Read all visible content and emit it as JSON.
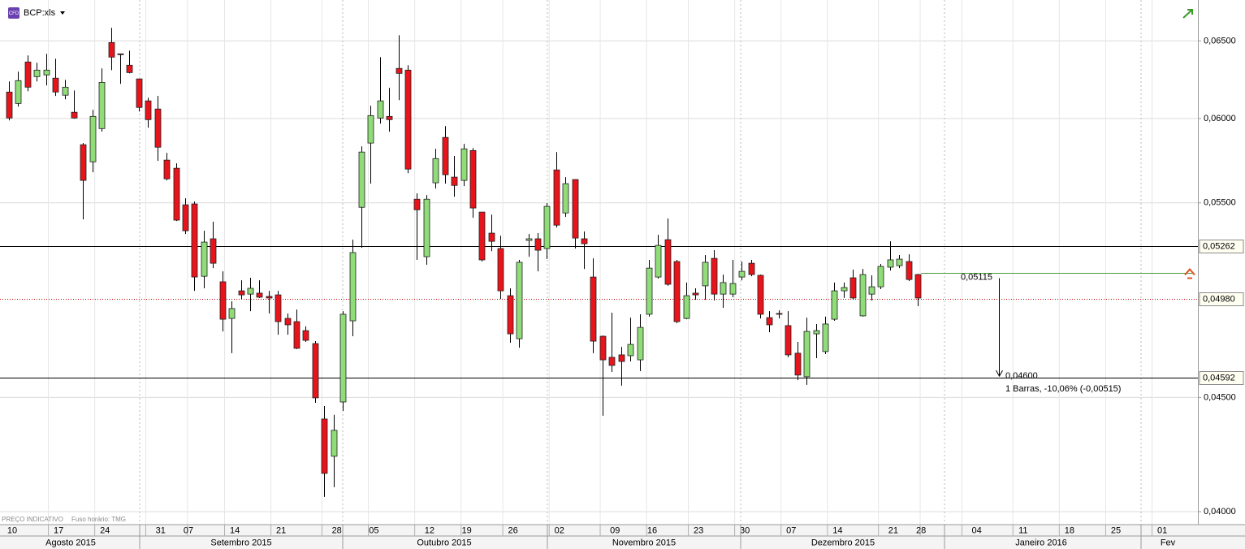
{
  "chart_data": {
    "type": "candlestick",
    "instrument": "BCP:xls",
    "badge": "CFD",
    "footnote": [
      "PREÇO INDICATIVO",
      "Fuso horário: TMG"
    ],
    "log_scale": true,
    "grid": true,
    "colors": {
      "up": "#8fdc78",
      "down": "#e8141c",
      "wick": "#000000"
    },
    "ylim": [
      0.0395,
      0.0678
    ],
    "yticks": [
      {
        "value": 0.04,
        "label": "0,04000"
      },
      {
        "value": 0.045,
        "label": "0,04500"
      },
      {
        "value": 0.055,
        "label": "0,05500"
      },
      {
        "value": 0.06,
        "label": "0,06000"
      },
      {
        "value": 0.065,
        "label": "0,06500"
      }
    ],
    "months": [
      "Agosto 2015",
      "Setembro 2015",
      "Outubro 2015",
      "Novembro 2015",
      "Dezembro 2015",
      "Janeiro 2016",
      "Fev"
    ],
    "categories": [
      "10",
      null,
      null,
      null,
      null,
      "17",
      null,
      null,
      null,
      null,
      "24",
      null,
      null,
      null,
      null,
      null,
      "31",
      null,
      null,
      "07",
      null,
      null,
      null,
      null,
      "14",
      null,
      null,
      null,
      null,
      "21",
      null,
      null,
      null,
      null,
      null,
      "28",
      null,
      null,
      null,
      "05",
      null,
      null,
      null,
      null,
      null,
      "12",
      null,
      null,
      null,
      "19",
      null,
      null,
      null,
      null,
      "26",
      null,
      null,
      null,
      null,
      "02",
      null,
      null,
      null,
      null,
      null,
      "09",
      null,
      null,
      null,
      "16",
      null,
      null,
      null,
      null,
      "23",
      null,
      null,
      null,
      null,
      "30",
      null,
      null,
      null,
      null,
      "07",
      null,
      null,
      null,
      null,
      "14",
      null,
      null,
      null,
      null,
      null,
      "21",
      null,
      null,
      "28",
      null,
      null,
      null,
      null,
      null,
      "04",
      null,
      null,
      null,
      null,
      "11",
      null,
      null,
      null,
      null,
      "18",
      null,
      null,
      null,
      null,
      "25",
      null,
      null,
      null,
      null,
      "01",
      null
    ],
    "open": [
      0.06166,
      0.06094,
      0.0636,
      0.06265,
      0.06276,
      0.06255,
      0.06146,
      0.06039,
      0.0584,
      0.05738,
      0.05938,
      0.06489,
      0.06414,
      0.06339,
      0.0625,
      0.0611,
      0.06059,
      0.05748,
      0.057,
      0.05489,
      0.05494,
      0.05099,
      0.053,
      0.0507,
      0.04882,
      0.05023,
      0.05006,
      0.05011,
      0.04994,
      0.05002,
      0.04882,
      0.04866,
      0.04821,
      0.04757,
      0.04401,
      0.04235,
      0.04479,
      0.0487,
      0.05475,
      0.0585,
      0.06003,
      0.06013,
      0.06318,
      0.06307,
      0.05521,
      0.05203,
      0.05615,
      0.05884,
      0.05648,
      0.05629,
      0.05805,
      0.05448,
      0.05331,
      0.05247,
      0.04998,
      0.04781,
      0.05291,
      0.053,
      0.05247,
      0.0569,
      0.05443,
      0.05634,
      0.053,
      0.05095,
      0.04793,
      0.0469,
      0.04702,
      0.04698,
      0.04678,
      0.04903,
      0.05095,
      0.05295,
      0.05177,
      0.04882,
      0.05011,
      0.05049,
      0.05194,
      0.05006,
      0.05006,
      0.05095,
      0.05168,
      0.05104,
      0.04886,
      0.04907,
      0.04846,
      0.0471,
      0.04597,
      0.04805,
      0.04718,
      0.04878,
      0.05023,
      0.05091,
      0.04895,
      0.05006,
      0.05044,
      0.05147,
      0.05155,
      0.05177,
      0.05108,
      null,
      null,
      null,
      null,
      null,
      null,
      null,
      null,
      null,
      null,
      null,
      null,
      null,
      null,
      null,
      null,
      null,
      null,
      null,
      null,
      null,
      null,
      null,
      null,
      null,
      null,
      null
    ],
    "high": [
      0.06234,
      0.06297,
      0.06403,
      0.06355,
      0.06414,
      0.06381,
      0.06244,
      0.06176,
      0.0585,
      0.06054,
      0.06318,
      0.06588,
      0.06414,
      0.06435,
      0.0625,
      0.0613,
      0.06141,
      0.05791,
      0.05729,
      0.05526,
      0.05507,
      0.05344,
      0.05394,
      0.05125,
      0.04969,
      0.05078,
      0.05091,
      0.05078,
      0.05023,
      0.05023,
      0.04907,
      0.04927,
      0.04842,
      0.04769,
      0.0446,
      0.0442,
      0.04919,
      0.05295,
      0.0583,
      0.06079,
      0.06392,
      0.06192,
      0.06538,
      0.06339,
      0.05554,
      0.05545,
      0.05815,
      0.05953,
      0.05772,
      0.05845,
      0.0582,
      0.05448,
      0.05434,
      0.05317,
      0.05036,
      0.05186,
      0.05326,
      0.05331,
      0.05498,
      0.05796,
      0.05648,
      0.05634,
      0.0534,
      0.05194,
      0.04797,
      0.04911,
      0.04741,
      0.04886,
      0.04903,
      0.05186,
      0.05322,
      0.05412,
      0.05186,
      0.05066,
      0.05036,
      0.05212,
      0.05238,
      0.05108,
      0.05186,
      0.05177,
      0.05186,
      0.05108,
      0.04919,
      0.04923,
      0.04919,
      0.04765,
      0.04886,
      0.04854,
      0.04891,
      0.05066,
      0.05066,
      0.05134,
      0.05138,
      0.05104,
      0.05164,
      0.05286,
      0.05212,
      0.05216,
      0.05112,
      null,
      null,
      null,
      null,
      null,
      null,
      null,
      null,
      null,
      null,
      null,
      null,
      null,
      null,
      null,
      null,
      null,
      null,
      null,
      null,
      null,
      null,
      null,
      null,
      null,
      null,
      null
    ],
    "low": [
      0.05988,
      0.06074,
      0.06171,
      0.06234,
      0.06208,
      0.06141,
      0.0612,
      0.05998,
      0.05407,
      0.05676,
      0.05919,
      0.06307,
      0.06218,
      0.06286,
      0.06044,
      0.05943,
      0.05743,
      0.05629,
      0.05398,
      0.05326,
      0.05023,
      0.05036,
      0.05142,
      0.04817,
      0.0471,
      0.04981,
      0.04919,
      0.04986,
      0.04907,
      0.04801,
      0.04801,
      0.0473,
      0.04765,
      0.04475,
      0.04061,
      0.04102,
      0.04438,
      0.04793,
      0.05251,
      0.0561,
      0.05969,
      0.05919,
      0.06115,
      0.05671,
      0.05186,
      0.0516,
      0.05582,
      0.0561,
      0.05535,
      0.05596,
      0.05416,
      0.05177,
      0.05233,
      0.04981,
      0.04761,
      0.04737,
      0.05203,
      0.05125,
      0.0519,
      0.05362,
      0.05421,
      0.05247,
      0.05138,
      0.0471,
      0.04416,
      0.0462,
      0.04555,
      0.0467,
      0.04624,
      0.04891,
      0.05087,
      0.05049,
      0.04858,
      0.04878,
      0.04977,
      0.04977,
      0.04973,
      0.04936,
      0.0499,
      0.05078,
      0.05099,
      0.04882,
      0.04813,
      0.04882,
      0.0469,
      0.04581,
      0.04559,
      0.04686,
      0.04706,
      0.0487,
      0.04986,
      0.04977,
      0.04891,
      0.04973,
      0.05032,
      0.05129,
      0.05142,
      0.05074,
      0.04944,
      null,
      null,
      null,
      null,
      null,
      null,
      null,
      null,
      null,
      null,
      null,
      null,
      null,
      null,
      null,
      null,
      null,
      null,
      null,
      null,
      null,
      null,
      null,
      null,
      null,
      null,
      null
    ],
    "close": [
      0.06003,
      0.06239,
      0.06197,
      0.06307,
      0.06307,
      0.06166,
      0.06197,
      0.06003,
      0.05629,
      0.06013,
      0.06228,
      0.06392,
      0.06408,
      0.06291,
      0.06069,
      0.05993,
      0.05825,
      0.05638,
      0.05403,
      0.05344,
      0.05095,
      0.05282,
      0.05168,
      0.04878,
      0.04932,
      0.05002,
      0.05036,
      0.0499,
      0.04986,
      0.04866,
      0.0485,
      0.04734,
      0.04773,
      0.04498,
      0.04161,
      0.0435,
      0.04903,
      0.05225,
      0.05796,
      0.06018,
      0.0611,
      0.05993,
      0.06286,
      0.05695,
      0.05461,
      0.05521,
      0.05757,
      0.05662,
      0.056,
      0.05815,
      0.05471,
      0.05186,
      0.05286,
      0.05023,
      0.04805,
      0.05173,
      0.053,
      0.05238,
      0.0548,
      0.05375,
      0.0561,
      0.05304,
      0.05273,
      0.04769,
      0.04678,
      0.04651,
      0.0467,
      0.04753,
      0.04837,
      0.05142,
      0.05264,
      0.05057,
      0.04866,
      0.04998,
      0.05002,
      0.05173,
      0.05006,
      0.05066,
      0.05061,
      0.05125,
      0.05108,
      0.04903,
      0.0485,
      0.04903,
      0.04702,
      0.04605,
      0.04817,
      0.04821,
      0.04854,
      0.05023,
      0.0504,
      0.04986,
      0.05108,
      0.05044,
      0.05151,
      0.05186,
      0.0519,
      0.05082,
      0.04986,
      null,
      null,
      null,
      null,
      null,
      null,
      null,
      null,
      null,
      null,
      null,
      null,
      null,
      null,
      null,
      null,
      null,
      null,
      null,
      null,
      null,
      null,
      null,
      null,
      null,
      null,
      null
    ],
    "levels": [
      {
        "value": 0.05262,
        "label": "0,05262",
        "color": "#000000",
        "dash": false
      },
      {
        "value": 0.0498,
        "label": "0,04980",
        "color": "#c00000",
        "dash": true
      },
      {
        "value": 0.04592,
        "label": "0,04592",
        "color": "#000000",
        "dash": false
      }
    ],
    "measure": {
      "from": {
        "value": 0.05115,
        "label": "0,05115"
      },
      "to": {
        "value": 0.046,
        "label": "0,04600"
      },
      "text": "1 Barras, -10,06% (-0,00515)",
      "color": "#4a9a3a"
    }
  }
}
